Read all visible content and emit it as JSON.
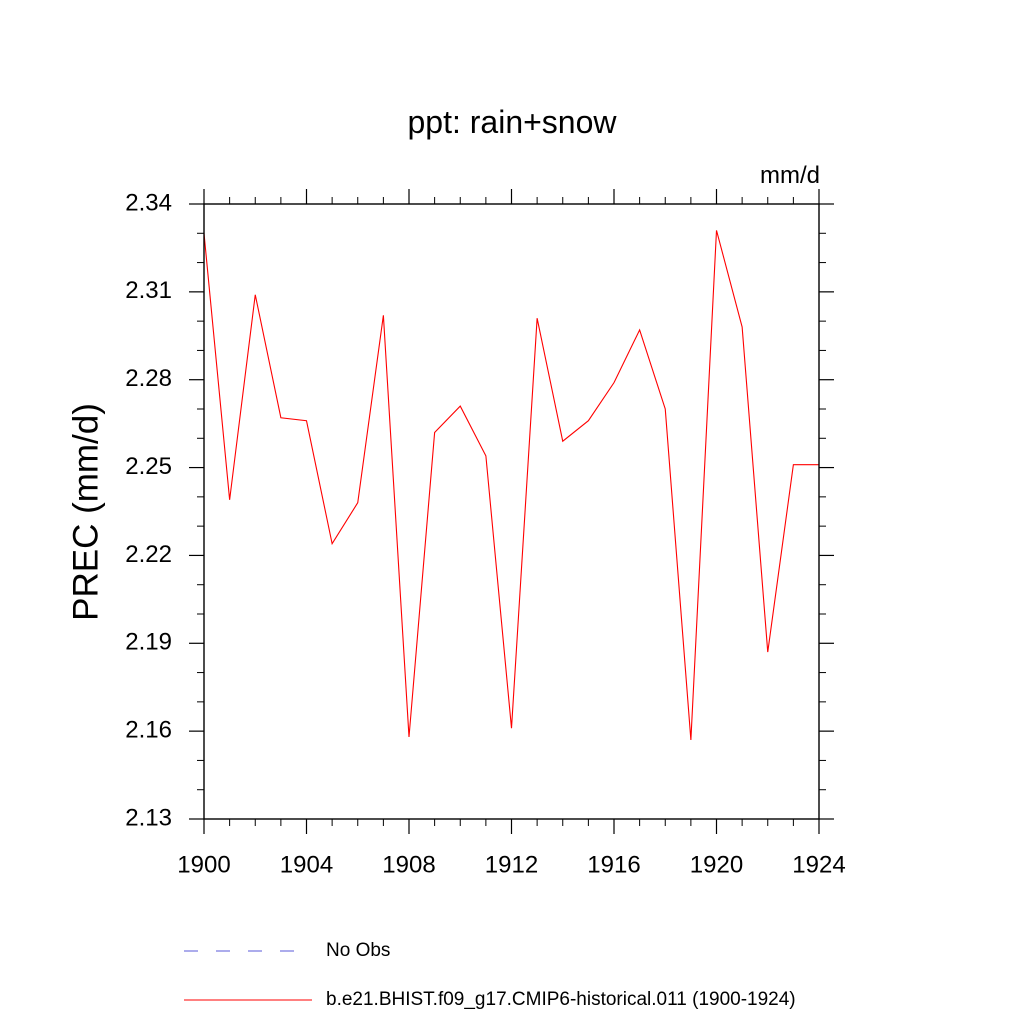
{
  "chart_data": {
    "type": "line",
    "title": "ppt: rain+snow",
    "units_label": "mm/d",
    "ylabel": "PREC  (mm/d)",
    "xlabel": "",
    "xlim": [
      1900,
      1924
    ],
    "ylim": [
      2.13,
      2.34
    ],
    "x_ticks": [
      1900,
      1904,
      1908,
      1912,
      1916,
      1920,
      1924
    ],
    "y_ticks": [
      "2.13",
      "2.16",
      "2.19",
      "2.22",
      "2.25",
      "2.28",
      "2.31",
      "2.34"
    ],
    "x": [
      1900,
      1901,
      1902,
      1903,
      1904,
      1905,
      1906,
      1907,
      1908,
      1909,
      1910,
      1911,
      1912,
      1913,
      1914,
      1915,
      1916,
      1917,
      1918,
      1919,
      1920,
      1921,
      1922,
      1923,
      1924
    ],
    "series": [
      {
        "name": "b.e21.BHIST.f09_g17.CMIP6-historical.011 (1900-1924)",
        "color": "#ff0000",
        "style": "solid",
        "values": [
          2.33,
          2.239,
          2.309,
          2.267,
          2.266,
          2.224,
          2.238,
          2.302,
          2.158,
          2.262,
          2.271,
          2.254,
          2.161,
          2.301,
          2.259,
          2.266,
          2.279,
          2.297,
          2.27,
          2.157,
          2.331,
          2.298,
          2.187,
          2.251,
          2.251
        ]
      }
    ],
    "legend": {
      "placement": "bottom",
      "entries": [
        {
          "label": "No Obs",
          "color": "#5a5ad8",
          "style": "dashed"
        },
        {
          "label": "b.e21.BHIST.f09_g17.CMIP6-historical.011 (1900-1924)",
          "color": "#ff0000",
          "style": "solid"
        }
      ]
    },
    "grid": false
  }
}
